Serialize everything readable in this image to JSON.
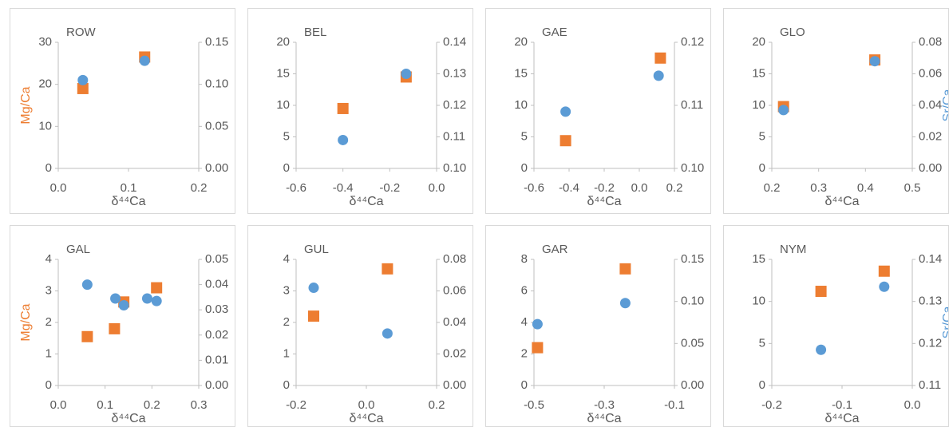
{
  "chart_data": [
    {
      "type": "scatter",
      "title": "ROW",
      "x_label": "δ⁴⁴Ca",
      "y_label": "Mg/Ca",
      "xlim": [
        0,
        0.2
      ],
      "xticks": [
        {
          "value": 0,
          "label": "0.0"
        },
        0.1,
        0.2
      ],
      "ylim": [
        0,
        30
      ],
      "yticks": [
        0,
        10,
        20,
        30
      ],
      "y2lim": [
        0,
        0.15
      ],
      "y2ticks": [
        {
          "value": 0,
          "label": "0.00"
        },
        0.05,
        {
          "value": 0.1,
          "label": "0.10"
        },
        0.15
      ],
      "series": [
        {
          "color": "#ed7d31",
          "marker": "square",
          "axis": "y",
          "x": [
            0.035,
            0.123
          ],
          "values": [
            19,
            26.5
          ]
        },
        {
          "color": "#5b9bd5",
          "marker": "circle",
          "axis": "y2",
          "x": [
            0.035,
            0.123
          ],
          "values": [
            0.105,
            0.128
          ]
        }
      ]
    },
    {
      "type": "scatter",
      "title": "BEL",
      "x_label": "δ⁴⁴Ca",
      "xlim": [
        -0.6,
        0
      ],
      "xticks": [
        -0.6,
        -0.4,
        -0.2,
        {
          "value": 0,
          "label": "0.0"
        }
      ],
      "ylim": [
        0,
        20
      ],
      "yticks": [
        0,
        5,
        10,
        15,
        20
      ],
      "y2lim": [
        0.1,
        0.14
      ],
      "y2ticks": [
        {
          "value": 0.1,
          "label": "0.10"
        },
        0.11,
        0.12,
        0.13,
        0.14
      ],
      "series": [
        {
          "color": "#ed7d31",
          "marker": "square",
          "axis": "y",
          "x": [
            -0.4,
            -0.13
          ],
          "values": [
            9.5,
            14.5
          ]
        },
        {
          "color": "#5b9bd5",
          "marker": "circle",
          "axis": "y2",
          "x": [
            -0.4,
            -0.13
          ],
          "values": [
            0.109,
            0.13
          ]
        }
      ]
    },
    {
      "type": "scatter",
      "title": "GAE",
      "x_label": "δ⁴⁴Ca",
      "xlim": [
        -0.6,
        0.2
      ],
      "xticks": [
        -0.6,
        -0.4,
        -0.2,
        {
          "value": 0,
          "label": "0.0"
        },
        0.2
      ],
      "ylim": [
        0,
        20
      ],
      "yticks": [
        0,
        5,
        10,
        15,
        20
      ],
      "y2lim": [
        0.1,
        0.12
      ],
      "y2ticks": [
        {
          "value": 0.1,
          "label": "0.10"
        },
        0.11,
        {
          "value": 0.12,
          "label": "0.12"
        }
      ],
      "series": [
        {
          "color": "#ed7d31",
          "marker": "square",
          "axis": "y",
          "x": [
            -0.42,
            0.12
          ],
          "values": [
            4.4,
            17.5
          ]
        },
        {
          "color": "#5b9bd5",
          "marker": "circle",
          "axis": "y2",
          "x": [
            -0.42,
            0.11
          ],
          "values": [
            0.109,
            0.1147
          ]
        }
      ]
    },
    {
      "type": "scatter",
      "title": "GLO",
      "x_label": "δ⁴⁴Ca",
      "y2_label": "Sr/Ca",
      "xlim": [
        0.2,
        0.5
      ],
      "xticks": [
        0.2,
        0.3,
        0.4,
        0.5
      ],
      "ylim": [
        0,
        20
      ],
      "yticks": [
        0,
        5,
        10,
        15,
        20
      ],
      "y2lim": [
        0,
        0.08
      ],
      "y2ticks": [
        {
          "value": 0,
          "label": "0.00"
        },
        0.02,
        0.04,
        0.06,
        0.08
      ],
      "series": [
        {
          "color": "#ed7d31",
          "marker": "square",
          "axis": "y",
          "x": [
            0.225,
            0.42
          ],
          "values": [
            9.8,
            17.2
          ]
        },
        {
          "color": "#5b9bd5",
          "marker": "circle",
          "axis": "y2",
          "x": [
            0.225,
            0.42
          ],
          "values": [
            0.037,
            0.068
          ]
        }
      ]
    },
    {
      "type": "scatter",
      "title": "GAL",
      "x_label": "δ⁴⁴Ca",
      "y_label": "Mg/Ca",
      "xlim": [
        0,
        0.3
      ],
      "xticks": [
        {
          "value": 0,
          "label": "0.0"
        },
        0.1,
        0.2,
        0.3
      ],
      "ylim": [
        0,
        4
      ],
      "yticks": [
        0,
        1,
        2,
        3,
        4
      ],
      "y2lim": [
        0,
        0.05
      ],
      "y2ticks": [
        {
          "value": 0,
          "label": "0.00"
        },
        0.01,
        0.02,
        0.03,
        0.04,
        0.05
      ],
      "series": [
        {
          "color": "#ed7d31",
          "marker": "square",
          "axis": "y",
          "x": [
            0.062,
            0.12,
            0.14,
            0.21
          ],
          "values": [
            1.55,
            1.8,
            2.65,
            3.1
          ]
        },
        {
          "color": "#5b9bd5",
          "marker": "circle",
          "axis": "y2",
          "x": [
            0.062,
            0.122,
            0.14,
            0.19,
            0.21
          ],
          "values": [
            0.04,
            0.0345,
            0.0318,
            0.0345,
            0.0335
          ]
        }
      ]
    },
    {
      "type": "scatter",
      "title": "GUL",
      "x_label": "δ⁴⁴Ca",
      "xlim": [
        -0.2,
        0.2
      ],
      "xticks": [
        -0.2,
        {
          "value": 0,
          "label": "0.0"
        },
        0.2
      ],
      "ylim": [
        0,
        4
      ],
      "yticks": [
        0,
        1,
        2,
        3,
        4
      ],
      "y2lim": [
        0,
        0.08
      ],
      "y2ticks": [
        {
          "value": 0,
          "label": "0.00"
        },
        0.02,
        0.04,
        0.06,
        0.08
      ],
      "series": [
        {
          "color": "#ed7d31",
          "marker": "square",
          "axis": "y",
          "x": [
            -0.15,
            0.06
          ],
          "values": [
            2.2,
            3.7
          ]
        },
        {
          "color": "#5b9bd5",
          "marker": "circle",
          "axis": "y2",
          "x": [
            -0.15,
            0.06
          ],
          "values": [
            0.062,
            0.033
          ]
        }
      ]
    },
    {
      "type": "scatter",
      "title": "GAR",
      "x_label": "δ⁴⁴Ca",
      "xlim": [
        -0.5,
        -0.1
      ],
      "xticks": [
        -0.5,
        -0.3,
        -0.1
      ],
      "ylim": [
        0,
        8
      ],
      "yticks": [
        0,
        2,
        4,
        6,
        8
      ],
      "y2lim": [
        0,
        0.15
      ],
      "y2ticks": [
        {
          "value": 0,
          "label": "0.00"
        },
        0.05,
        {
          "value": 0.1,
          "label": "0.10"
        },
        0.15
      ],
      "series": [
        {
          "color": "#ed7d31",
          "marker": "square",
          "axis": "y",
          "x": [
            -0.49,
            -0.24
          ],
          "values": [
            2.4,
            7.4
          ]
        },
        {
          "color": "#5b9bd5",
          "marker": "circle",
          "axis": "y2",
          "x": [
            -0.49,
            -0.24
          ],
          "values": [
            0.073,
            0.098
          ]
        }
      ]
    },
    {
      "type": "scatter",
      "title": "NYM",
      "x_label": "δ⁴⁴Ca",
      "y2_label": "Sr/Ca",
      "xlim": [
        -0.2,
        0
      ],
      "xticks": [
        -0.2,
        -0.1,
        {
          "value": 0,
          "label": "0.0"
        }
      ],
      "ylim": [
        0,
        15
      ],
      "yticks": [
        0,
        5,
        10,
        15
      ],
      "y2lim": [
        0.11,
        0.14
      ],
      "y2ticks": [
        0.11,
        0.12,
        0.13,
        0.14
      ],
      "series": [
        {
          "color": "#ed7d31",
          "marker": "square",
          "axis": "y",
          "x": [
            -0.13,
            -0.04
          ],
          "values": [
            11.2,
            13.6
          ]
        },
        {
          "color": "#5b9bd5",
          "marker": "circle",
          "axis": "y2",
          "x": [
            -0.13,
            -0.04
          ],
          "values": [
            0.1185,
            0.1335
          ]
        }
      ]
    }
  ]
}
